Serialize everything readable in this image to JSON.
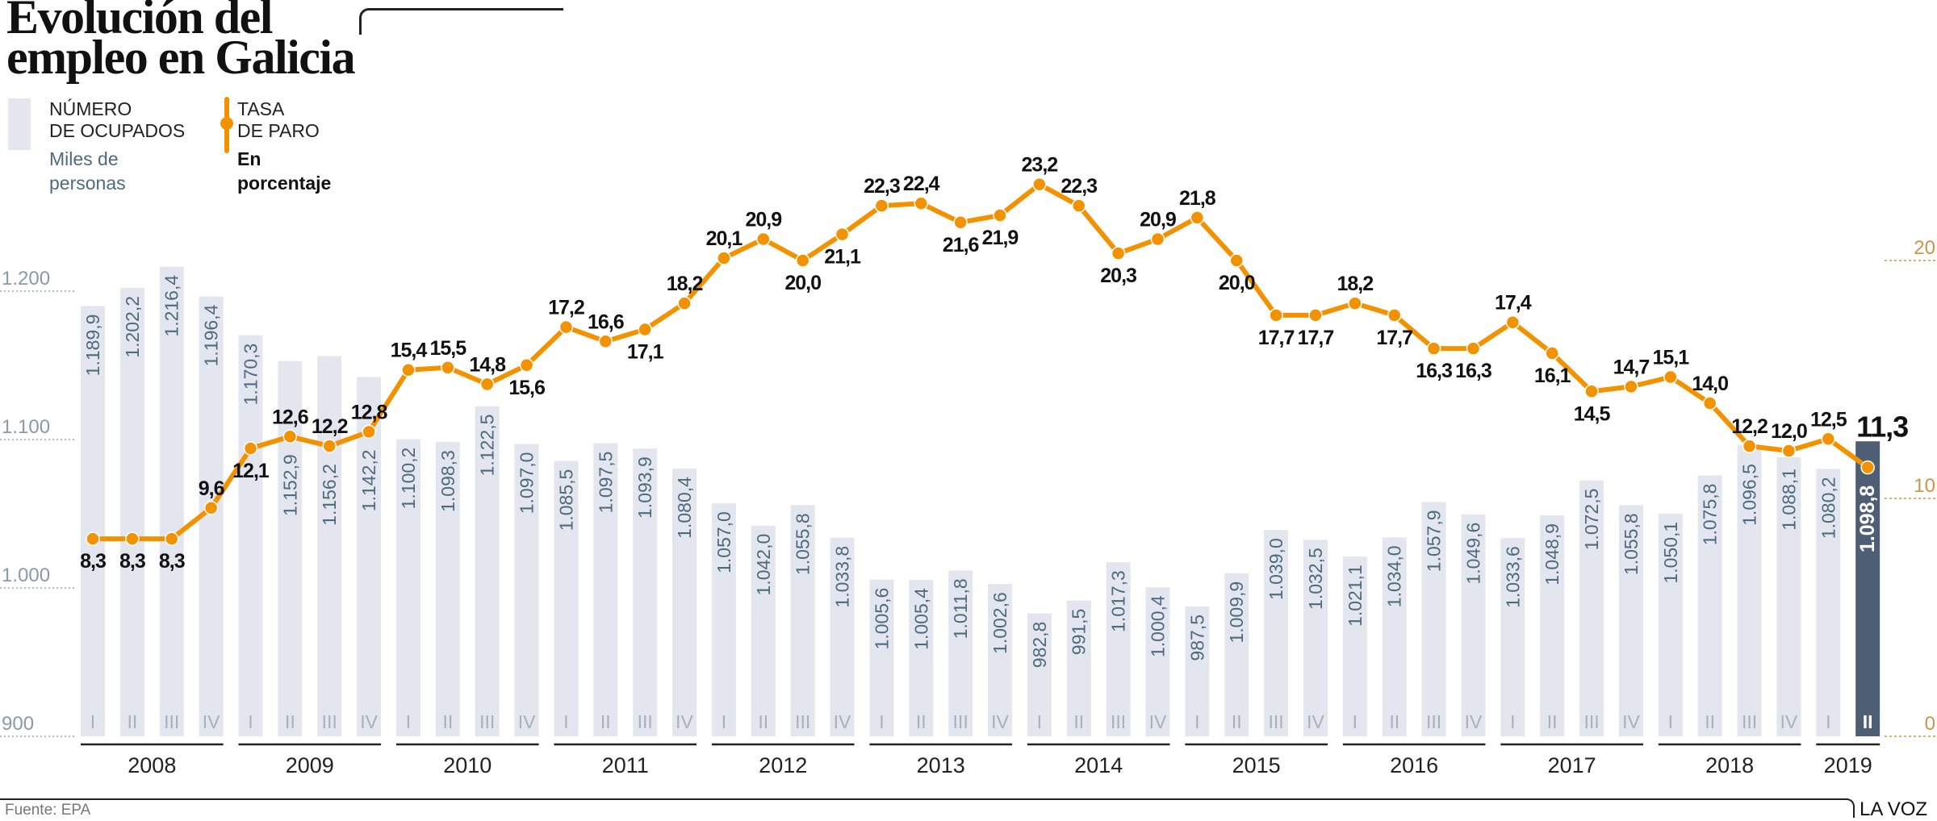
{
  "title": {
    "line1": "Evolución del",
    "line2": "empleo en Galicia"
  },
  "legend": {
    "bars": {
      "line1": "NÚMERO",
      "line2": "DE OCUPADOS",
      "unit1": "Miles de",
      "unit2": "personas"
    },
    "line": {
      "line1": "TASA",
      "line2": "DE PARO",
      "unit1": "En",
      "unit2": "porcentaje"
    }
  },
  "footer": {
    "source": "Fuente: EPA",
    "brand": "LA VOZ"
  },
  "colors": {
    "bar": "#e3e6ee",
    "bar_highlight": "#4d5e75",
    "line": "#f39200",
    "bar_text": "#4e6b7d",
    "right_axis": "#c8964a"
  },
  "chart_data": {
    "type": "bar+line",
    "years": [
      "2008",
      "2009",
      "2010",
      "2011",
      "2012",
      "2013",
      "2014",
      "2015",
      "2016",
      "2017",
      "2018",
      "2019"
    ],
    "quarters": [
      "I",
      "II",
      "III",
      "IV",
      "I",
      "II",
      "III",
      "IV",
      "I",
      "II",
      "III",
      "IV",
      "I",
      "II",
      "III",
      "IV",
      "I",
      "II",
      "III",
      "IV",
      "I",
      "II",
      "III",
      "IV",
      "I",
      "II",
      "III",
      "IV",
      "I",
      "II",
      "III",
      "IV",
      "I",
      "II",
      "III",
      "IV",
      "I",
      "II",
      "III",
      "IV",
      "I",
      "II",
      "III",
      "IV",
      "I",
      "II"
    ],
    "left_axis": {
      "ticks": [
        "900",
        "1.000",
        "1.100",
        "1.200"
      ],
      "range": [
        900,
        1230
      ]
    },
    "right_axis": {
      "ticks": [
        "0",
        "10",
        "20"
      ],
      "range": [
        0,
        20
      ]
    },
    "series": [
      {
        "name": "NÚMERO DE OCUPADOS",
        "type": "bar",
        "axis": "left",
        "values": [
          1189.9,
          1202.2,
          1216.4,
          1196.4,
          1170.3,
          1152.9,
          1156.2,
          1142.2,
          1100.2,
          1098.3,
          1122.5,
          1097.0,
          1085.5,
          1097.5,
          1093.9,
          1080.4,
          1057.0,
          1042.0,
          1055.8,
          1033.8,
          1005.6,
          1005.4,
          1011.8,
          1002.6,
          982.8,
          991.5,
          1017.3,
          1000.4,
          987.5,
          1009.9,
          1039.0,
          1032.5,
          1021.1,
          1034.0,
          1057.9,
          1049.6,
          1033.6,
          1048.9,
          1072.5,
          1055.8,
          1050.1,
          1075.8,
          1096.5,
          1088.1,
          1080.2,
          1098.8
        ],
        "labels": [
          "1.189,9",
          "1.202,2",
          "1.216,4",
          "1.196,4",
          "1.170,3",
          "1.152,9",
          "1.156,2",
          "1.142,2",
          "1.100,2",
          "1.098,3",
          "1.122,5",
          "1.097,0",
          "1.085,5",
          "1.097,5",
          "1.093,9",
          "1.080,4",
          "1.057,0",
          "1.042,0",
          "1.055,8",
          "1.033,8",
          "1.005,6",
          "1.005,4",
          "1.011,8",
          "1.002,6",
          "982,8",
          "991,5",
          "1.017,3",
          "1.000,4",
          "987,5",
          "1.009,9",
          "1.039,0",
          "1.032,5",
          "1.021,1",
          "1.034,0",
          "1.057,9",
          "1.049,6",
          "1.033,6",
          "1.048,9",
          "1.072,5",
          "1.055,8",
          "1.050,1",
          "1.075,8",
          "1.096,5",
          "1.088,1",
          "1.080,2",
          "1.098,8"
        ]
      },
      {
        "name": "TASA DE PARO",
        "type": "line",
        "axis": "right",
        "values": [
          8.3,
          8.3,
          8.3,
          9.6,
          12.1,
          12.6,
          12.2,
          12.8,
          15.4,
          15.5,
          14.8,
          15.6,
          17.2,
          16.6,
          17.1,
          18.2,
          20.1,
          20.9,
          20.0,
          21.1,
          22.3,
          22.4,
          21.6,
          21.9,
          23.2,
          22.3,
          20.3,
          20.9,
          21.8,
          20.0,
          17.7,
          17.7,
          18.2,
          17.7,
          16.3,
          16.3,
          17.4,
          16.1,
          14.5,
          14.7,
          15.1,
          14.0,
          12.2,
          12.0,
          12.5,
          11.3
        ],
        "labels": [
          "8,3",
          "8,3",
          "8,3",
          "9,6",
          "12,1",
          "12,6",
          "12,2",
          "12,8",
          "15,4",
          "15,5",
          "14,8",
          "15,6",
          "17,2",
          "16,6",
          "17,1",
          "18,2",
          "20,1",
          "20,9",
          "20,0",
          "21,1",
          "22,3",
          "22,4",
          "21,6",
          "21,9",
          "23,2",
          "22,3",
          "20,3",
          "20,9",
          "21,8",
          "20,0",
          "17,7",
          "17,7",
          "18,2",
          "17,7",
          "16,3",
          "16,3",
          "17,4",
          "16,1",
          "14,5",
          "14,7",
          "15,1",
          "14,0",
          "12,2",
          "12,0",
          "12,5",
          "11,3"
        ]
      }
    ],
    "highlight": "2019 II"
  }
}
